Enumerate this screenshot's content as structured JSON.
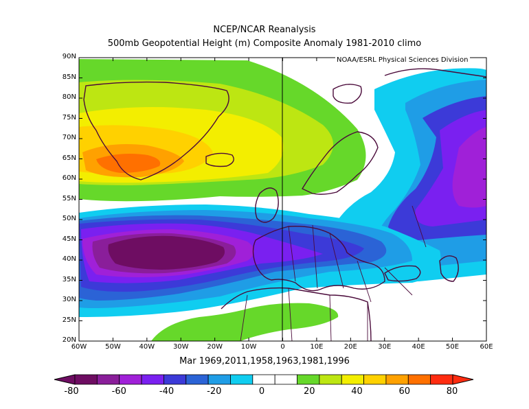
{
  "title_line1": "NCEP/NCAR Reanalysis",
  "title_line2": "500mb Geopotential Height (m) Composite Anomaly 1981-2010 climo",
  "credit": "NOAA/ESRL Physical Sciences Division",
  "subtitle": "Mar 1969,2011,1958,1963,1981,1996",
  "lat_ticks": [
    "90N",
    "85N",
    "80N",
    "75N",
    "70N",
    "65N",
    "60N",
    "55N",
    "50N",
    "45N",
    "40N",
    "35N",
    "30N",
    "25N",
    "20N"
  ],
  "lon_ticks": [
    "60W",
    "50W",
    "40W",
    "30W",
    "20W",
    "10W",
    "0",
    "10E",
    "20E",
    "30E",
    "40E",
    "50E",
    "60E"
  ],
  "colorbar_labels": [
    "-80",
    "-60",
    "-40",
    "-20",
    "0",
    "20",
    "40",
    "60",
    "80"
  ],
  "colorbar_colors": [
    "#6e0d62",
    "#8a1e9a",
    "#a020d8",
    "#7a20f0",
    "#3c3ad8",
    "#2b63d6",
    "#1f9de6",
    "#10cdf0",
    "#ffffff",
    "#ffffff",
    "#66d82a",
    "#bde612",
    "#f3ee00",
    "#ffd100",
    "#ffa100",
    "#ff7000",
    "#ff2c10"
  ],
  "icons": {
    "colorbar_left_end": "triangle-left",
    "colorbar_right_end": "triangle-right"
  }
}
